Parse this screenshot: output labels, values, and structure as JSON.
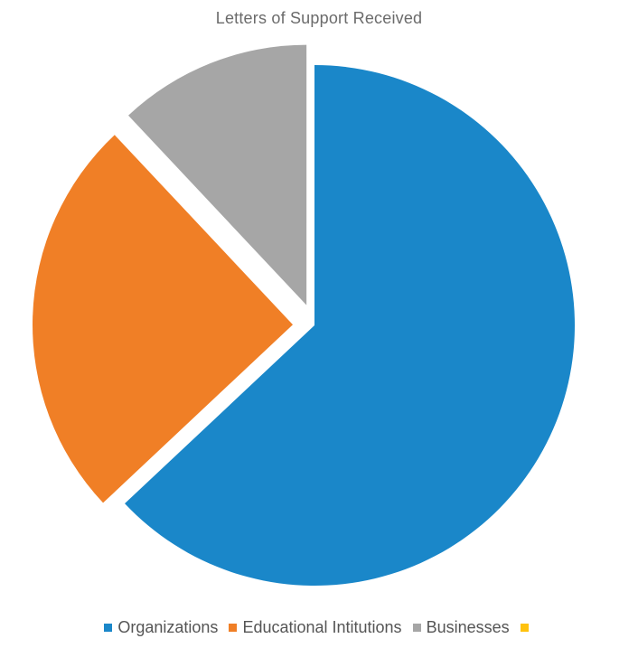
{
  "chart_data": {
    "type": "pie",
    "title": "Letters of Support Received",
    "categories": [
      "Organizations",
      "Educational Intitutions",
      "Businesses",
      ""
    ],
    "values": [
      63,
      25,
      12,
      0
    ],
    "colors": [
      "#1a87c9",
      "#f07f26",
      "#a6a6a6",
      "#ffc20e"
    ],
    "exploded": true,
    "legend_position": "bottom"
  }
}
